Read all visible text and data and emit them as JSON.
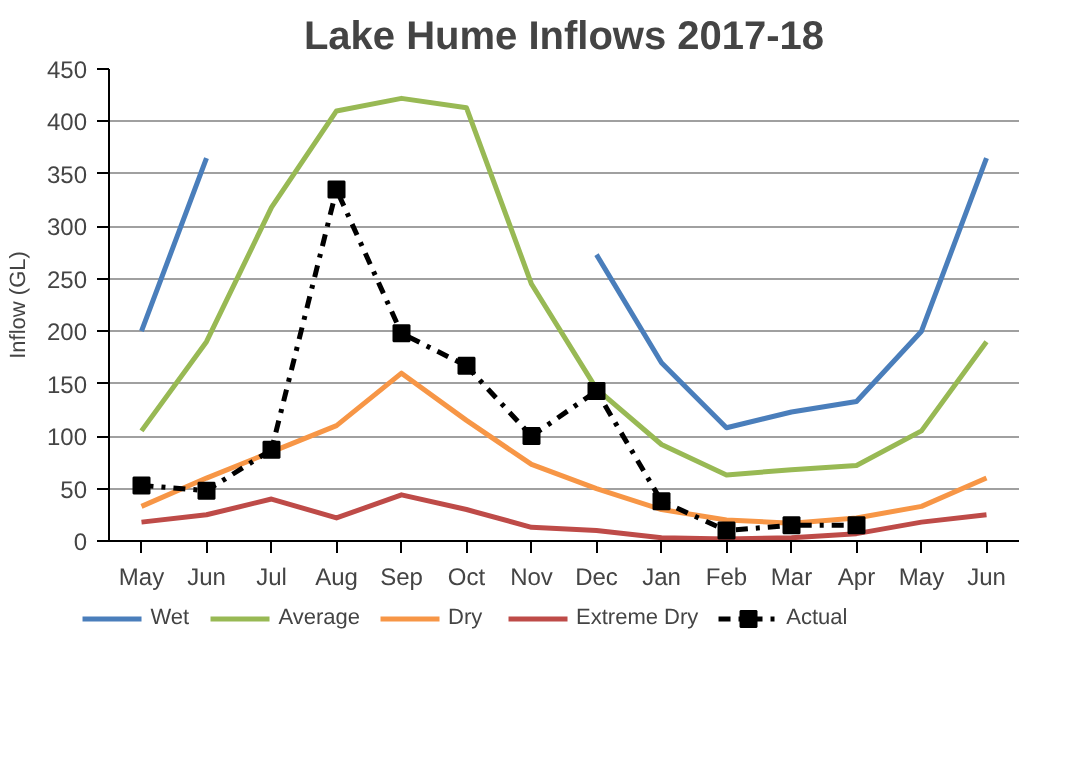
{
  "chart_data": {
    "type": "line",
    "title": "Lake Hume Inflows 2017-18",
    "ylabel": "Inflow (GL)",
    "categories": [
      "May",
      "Jun",
      "Jul",
      "Aug",
      "Sep",
      "Oct",
      "Nov",
      "Dec",
      "Jan",
      "Feb",
      "Mar",
      "Apr",
      "May",
      "Jun"
    ],
    "ylim": [
      0,
      450
    ],
    "yticks": [
      0,
      50,
      100,
      150,
      200,
      250,
      300,
      350,
      400,
      450
    ],
    "grid": "y",
    "legend": "bottom",
    "marker": "none",
    "line_style": "solid",
    "series": [
      {
        "name": "Wet",
        "color": "#4a7ebb",
        "values": [
          200,
          365,
          null,
          null,
          null,
          null,
          null,
          273,
          170,
          108,
          123,
          133,
          200,
          365
        ]
      },
      {
        "name": "Average",
        "color": "#98b954",
        "values": [
          105,
          190,
          318,
          410,
          422,
          413,
          245,
          145,
          92,
          63,
          68,
          72,
          105,
          190
        ]
      },
      {
        "name": "Dry",
        "color": "#f79646",
        "values": [
          33,
          60,
          85,
          110,
          160,
          115,
          73,
          50,
          30,
          20,
          17,
          22,
          33,
          60
        ]
      },
      {
        "name": "Extreme Dry",
        "color": "#be4b48",
        "values": [
          18,
          25,
          40,
          22,
          44,
          30,
          13,
          10,
          3,
          2,
          3,
          7,
          18,
          25
        ]
      },
      {
        "name": "Actual",
        "color": "#000000",
        "marker": "square",
        "line_style": "dashdot",
        "values": [
          53,
          48,
          87,
          335,
          198,
          167,
          100,
          143,
          38,
          10,
          15,
          15,
          null,
          null
        ]
      }
    ]
  }
}
